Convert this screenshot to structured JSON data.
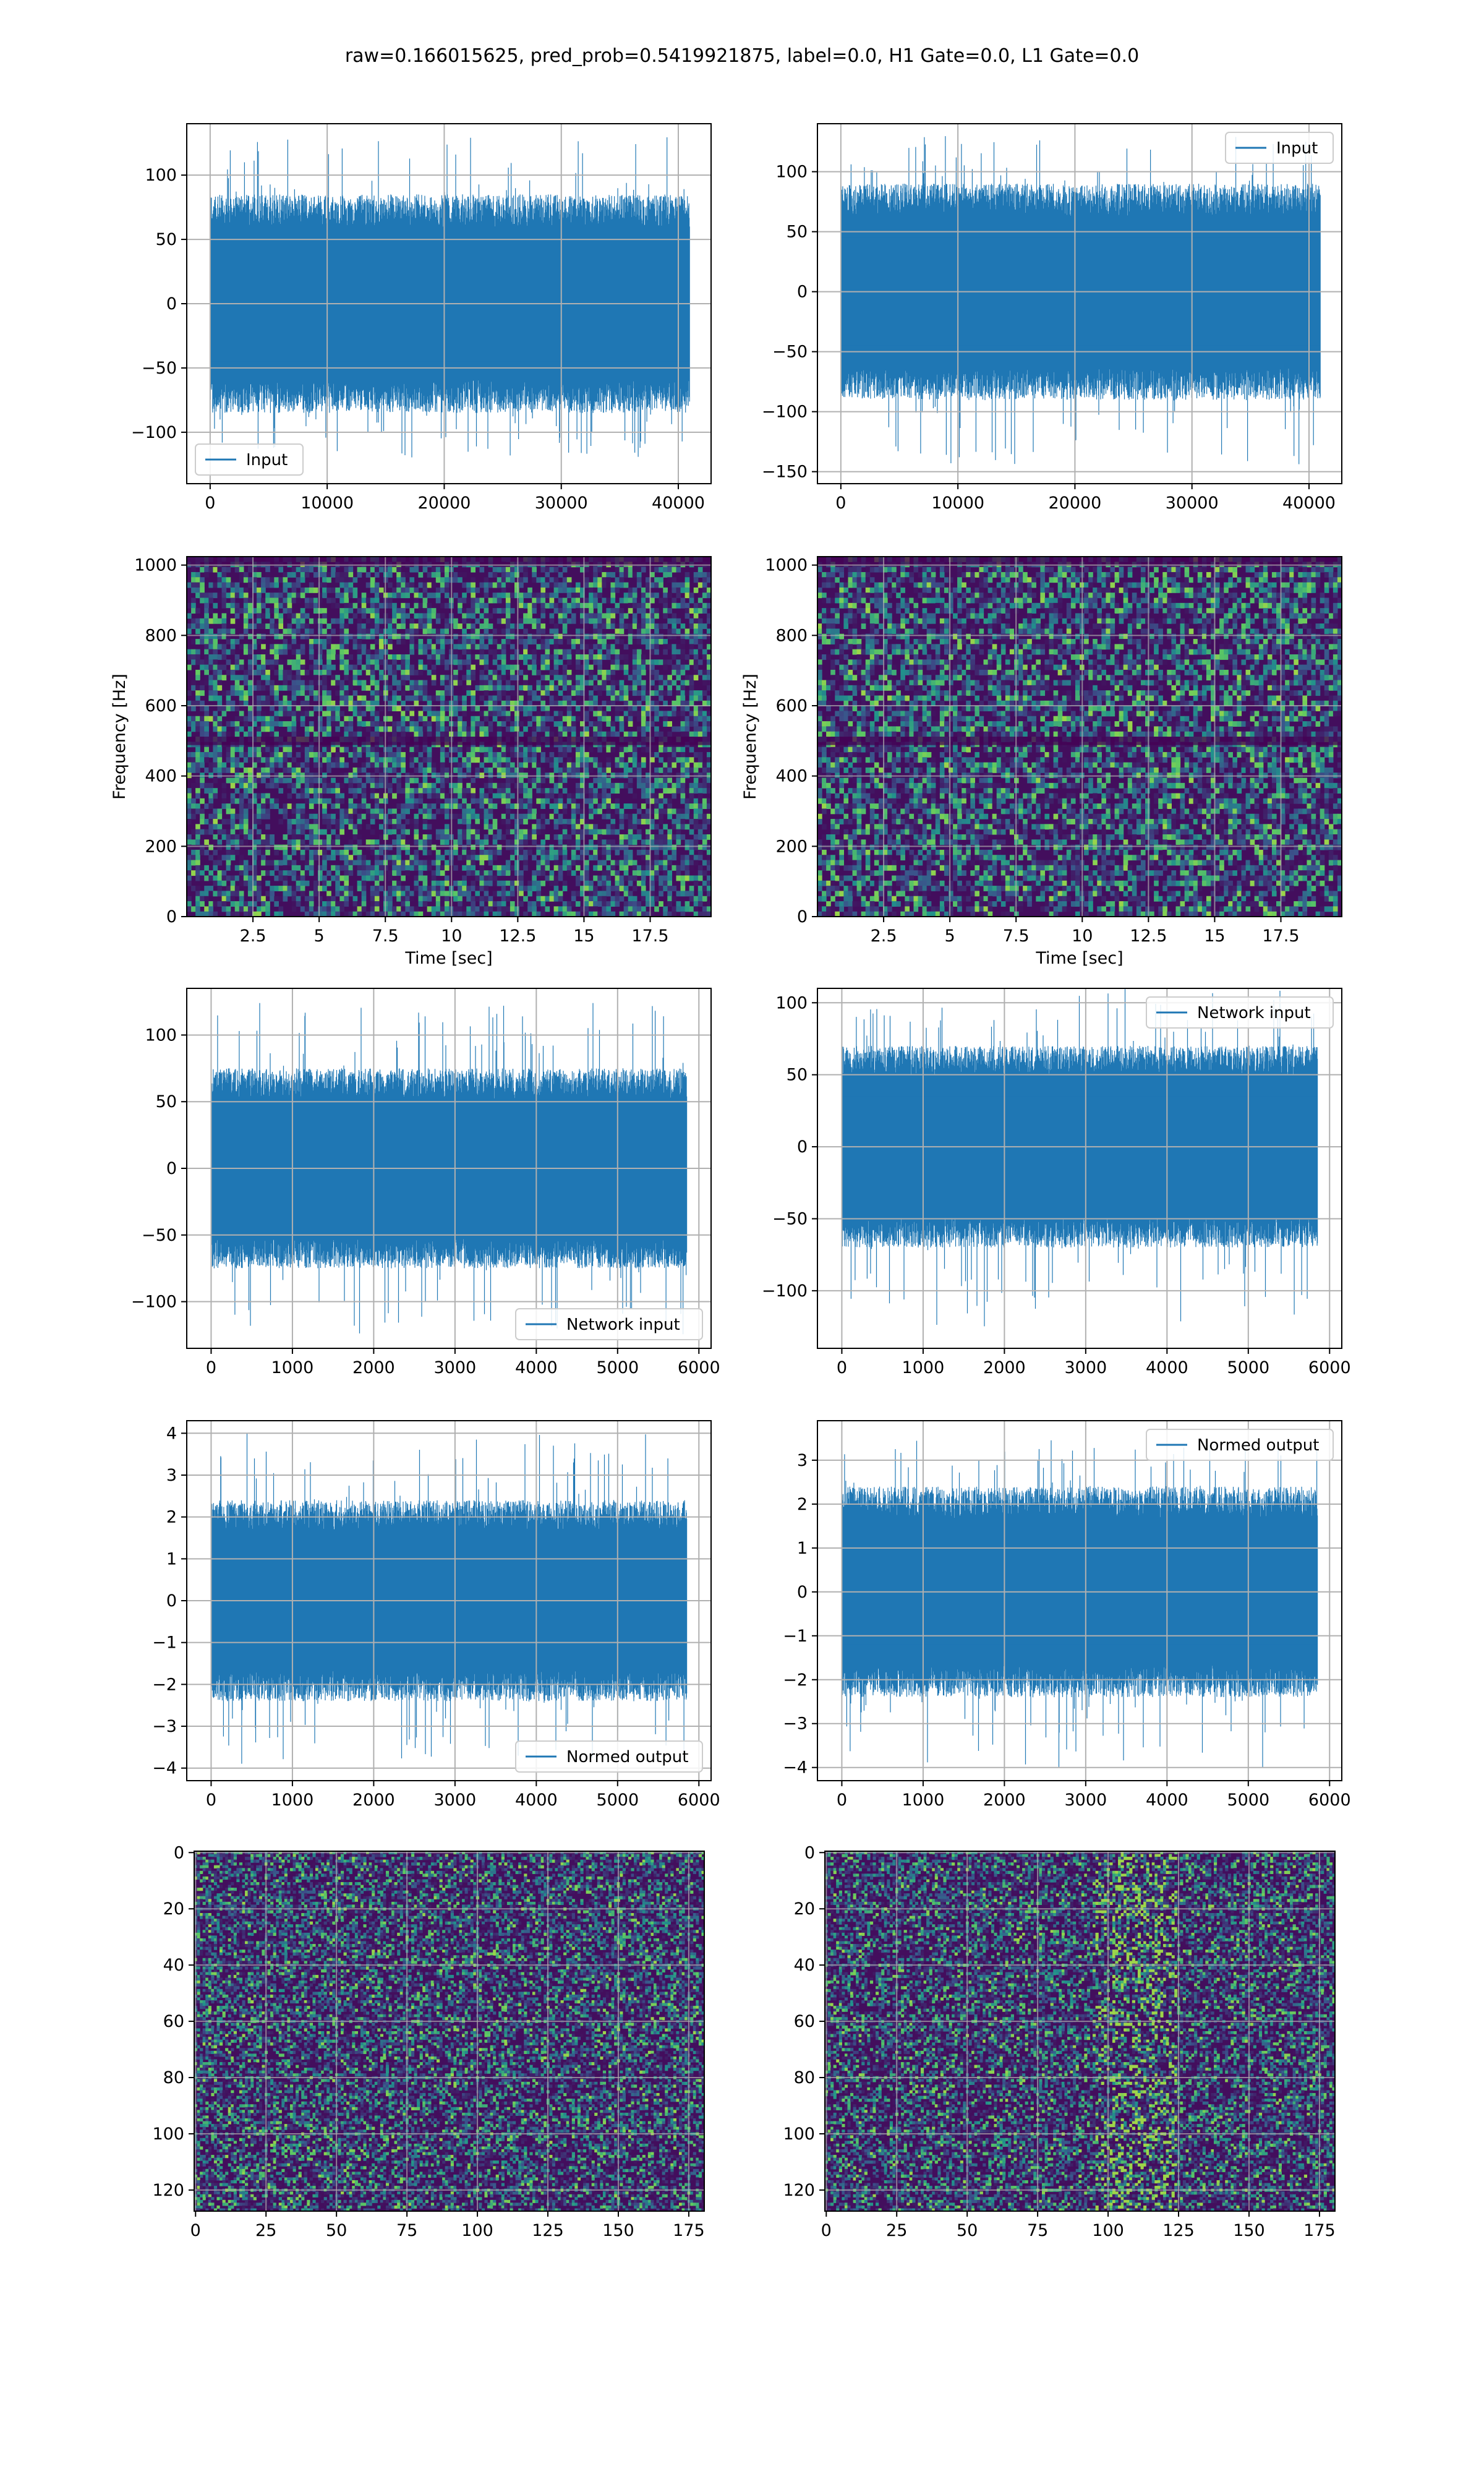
{
  "figure": {
    "suptitle": "raw=0.166015625, pred_prob=0.5419921875, label=0.0, H1 Gate=0.0, L1 Gate=0.0",
    "line_color": "#1f77b4",
    "colormap": "viridis"
  },
  "chart_data": [
    {
      "id": "input-h1",
      "type": "line",
      "series": [
        {
          "name": "Input"
        }
      ],
      "legend": "lower-left",
      "xlim": [
        -2000,
        42800
      ],
      "ylim": [
        -140,
        140
      ],
      "xticks": [
        0,
        10000,
        20000,
        30000,
        40000
      ],
      "yticks": [
        -100,
        -50,
        0,
        50,
        100
      ],
      "x_range": [
        0,
        40960
      ],
      "band": [
        -45,
        45
      ],
      "envelope": [
        -85,
        85
      ],
      "peaks": [
        130,
        -120
      ],
      "xlabel": "",
      "ylabel": "",
      "grid": true
    },
    {
      "id": "input-l1",
      "type": "line",
      "series": [
        {
          "name": "Input"
        }
      ],
      "legend": "upper-right",
      "xlim": [
        -2000,
        42800
      ],
      "ylim": [
        -160,
        140
      ],
      "xticks": [
        0,
        10000,
        20000,
        30000,
        40000
      ],
      "yticks": [
        -150,
        -100,
        -50,
        0,
        50,
        100
      ],
      "x_range": [
        0,
        40960
      ],
      "band": [
        -45,
        45
      ],
      "envelope": [
        -90,
        90
      ],
      "peaks": [
        130,
        -145
      ],
      "xlabel": "",
      "ylabel": "",
      "grid": true
    },
    {
      "id": "spec-h1",
      "type": "heatmap",
      "xlim": [
        0,
        19.8
      ],
      "ylim": [
        0,
        1024
      ],
      "xticks": [
        2.5,
        5.0,
        7.5,
        10.0,
        12.5,
        15.0,
        17.5
      ],
      "yticks": [
        0,
        200,
        400,
        600,
        800,
        1000
      ],
      "xlabel": "Time [sec]",
      "ylabel": "Frequency [Hz]",
      "grid": true,
      "dark_bands": [
        500,
        1010
      ],
      "seed": 11
    },
    {
      "id": "spec-l1",
      "type": "heatmap",
      "xlim": [
        0,
        19.8
      ],
      "ylim": [
        0,
        1024
      ],
      "xticks": [
        2.5,
        5.0,
        7.5,
        10.0,
        12.5,
        15.0,
        17.5
      ],
      "yticks": [
        0,
        200,
        400,
        600,
        800,
        1000
      ],
      "xlabel": "Time [sec]",
      "ylabel": "Frequency [Hz]",
      "grid": true,
      "dark_bands": [
        500,
        1010
      ],
      "seed": 23
    },
    {
      "id": "network-input-h1",
      "type": "line",
      "series": [
        {
          "name": "Network input"
        }
      ],
      "legend": "lower-right",
      "xlim": [
        -300,
        6150
      ],
      "ylim": [
        -135,
        135
      ],
      "xticks": [
        0,
        1000,
        2000,
        3000,
        4000,
        5000,
        6000
      ],
      "yticks": [
        -100,
        -50,
        0,
        50,
        100
      ],
      "x_range": [
        0,
        5850
      ],
      "band": [
        -40,
        40
      ],
      "envelope": [
        -75,
        75
      ],
      "peaks": [
        125,
        -125
      ],
      "xlabel": "",
      "ylabel": "",
      "grid": true
    },
    {
      "id": "network-input-l1",
      "type": "line",
      "series": [
        {
          "name": "Network input"
        }
      ],
      "legend": "upper-right",
      "xlim": [
        -300,
        6150
      ],
      "ylim": [
        -140,
        110
      ],
      "xticks": [
        0,
        1000,
        2000,
        3000,
        4000,
        5000,
        6000
      ],
      "yticks": [
        -100,
        -50,
        0,
        50,
        100
      ],
      "x_range": [
        0,
        5850
      ],
      "band": [
        -35,
        35
      ],
      "envelope": [
        -70,
        70
      ],
      "peaks": [
        110,
        -125
      ],
      "xlabel": "",
      "ylabel": "",
      "grid": true
    },
    {
      "id": "normed-output-h1",
      "type": "line",
      "series": [
        {
          "name": "Normed output"
        }
      ],
      "legend": "lower-right",
      "xlim": [
        -300,
        6150
      ],
      "ylim": [
        -4.3,
        4.3
      ],
      "xticks": [
        0,
        1000,
        2000,
        3000,
        4000,
        5000,
        6000
      ],
      "yticks": [
        -4,
        -3,
        -2,
        -1,
        0,
        1,
        2,
        3,
        4
      ],
      "x_range": [
        0,
        5850
      ],
      "band": [
        -1.2,
        1.2
      ],
      "envelope": [
        -2.4,
        2.4
      ],
      "peaks": [
        4.0,
        -3.9
      ],
      "xlabel": "",
      "ylabel": "",
      "grid": true
    },
    {
      "id": "normed-output-l1",
      "type": "line",
      "series": [
        {
          "name": "Normed output"
        }
      ],
      "legend": "upper-right",
      "xlim": [
        -300,
        6150
      ],
      "ylim": [
        -4.3,
        3.9
      ],
      "xticks": [
        0,
        1000,
        2000,
        3000,
        4000,
        5000,
        6000
      ],
      "yticks": [
        -4,
        -3,
        -2,
        -1,
        0,
        1,
        2,
        3
      ],
      "x_range": [
        0,
        5850
      ],
      "band": [
        -1.2,
        1.2
      ],
      "envelope": [
        -2.4,
        2.4
      ],
      "peaks": [
        3.5,
        -4.0
      ],
      "xlabel": "",
      "ylabel": "",
      "grid": true
    },
    {
      "id": "image-h1",
      "type": "heatmap",
      "image": true,
      "xlim": [
        -0.5,
        180.5
      ],
      "ylim": [
        127.5,
        -0.5
      ],
      "xticks": [
        0,
        25,
        50,
        75,
        100,
        125,
        150,
        175
      ],
      "yticks": [
        0,
        20,
        40,
        60,
        80,
        100,
        120
      ],
      "xlabel": "",
      "ylabel": "",
      "grid": true,
      "seed": 37
    },
    {
      "id": "image-l1",
      "type": "heatmap",
      "image": true,
      "xlim": [
        -0.5,
        180.5
      ],
      "ylim": [
        127.5,
        -0.5
      ],
      "xticks": [
        0,
        25,
        50,
        75,
        100,
        125,
        150,
        175
      ],
      "yticks": [
        0,
        20,
        40,
        60,
        80,
        100,
        120
      ],
      "xlabel": "",
      "ylabel": "",
      "grid": true,
      "seed": 53
    }
  ]
}
